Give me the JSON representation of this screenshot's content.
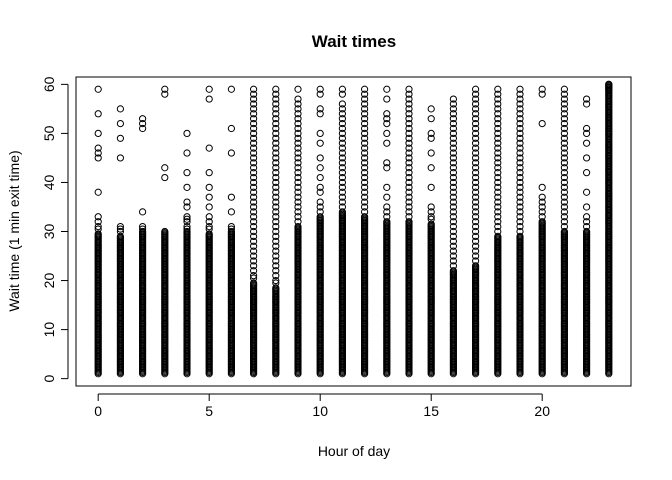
{
  "chart_data": {
    "type": "scatter",
    "title": "Wait times",
    "xlabel": "Hour of day",
    "ylabel": "Wait time (1 min exit time)",
    "xlim": [
      -1,
      24
    ],
    "ylim": [
      -1.5,
      61.5
    ],
    "x_ticks": [
      0,
      5,
      10,
      15,
      20
    ],
    "y_ticks": [
      0,
      10,
      20,
      30,
      40,
      50,
      60
    ],
    "marker": "open-circle",
    "marker_color": "#000000",
    "hours": [
      {
        "x": 0,
        "dense_to": 29.5,
        "outliers": [
          59,
          54,
          50,
          47,
          46,
          45,
          38,
          33,
          32,
          31,
          30.5
        ]
      },
      {
        "x": 1,
        "dense_to": 29,
        "outliers": [
          55,
          52,
          49,
          45,
          31,
          30.5,
          30
        ]
      },
      {
        "x": 2,
        "dense_to": 30,
        "outliers": [
          53,
          52,
          51,
          34,
          31,
          30.5
        ]
      },
      {
        "x": 3,
        "dense_to": 30,
        "outliers": [
          59,
          58,
          43,
          41
        ]
      },
      {
        "x": 4,
        "dense_to": 30,
        "outliers": [
          50,
          46,
          42,
          39,
          36,
          35,
          33,
          32.5,
          32,
          31,
          30.5
        ]
      },
      {
        "x": 5,
        "dense_to": 29.5,
        "outliers": [
          59,
          57,
          47,
          42,
          39,
          37,
          35,
          33,
          32,
          31,
          30.5
        ]
      },
      {
        "x": 6,
        "dense_to": 30,
        "outliers": [
          59,
          51,
          46,
          37,
          34,
          31,
          30.5
        ]
      },
      {
        "x": 7,
        "dense_to": 19.5,
        "outliers": [
          59,
          58,
          57,
          56,
          55,
          54,
          53,
          52,
          51,
          50,
          49,
          48,
          47,
          46,
          45,
          44,
          43,
          42,
          41,
          40,
          39,
          38,
          37,
          36,
          35,
          34,
          33,
          32,
          31,
          30,
          29,
          28,
          27,
          26,
          25,
          24,
          23,
          22,
          21,
          20.5
        ]
      },
      {
        "x": 8,
        "dense_to": 18.5,
        "outliers": [
          59,
          58,
          57,
          56,
          55,
          54,
          53,
          52,
          51,
          50,
          49,
          48,
          47,
          46,
          45,
          44,
          43,
          42,
          41,
          40,
          39,
          38,
          37,
          36,
          35,
          34,
          33,
          32,
          31,
          30,
          29,
          28,
          27,
          26,
          25,
          24,
          23,
          22,
          21,
          20,
          19.5
        ]
      },
      {
        "x": 9,
        "dense_to": 31,
        "outliers": [
          59,
          57,
          56,
          55,
          54,
          53,
          52,
          51,
          50,
          49,
          48,
          47,
          46,
          45,
          44,
          43,
          42,
          41,
          40,
          39,
          38,
          37,
          36,
          35,
          34,
          33,
          32
        ]
      },
      {
        "x": 10,
        "dense_to": 33,
        "outliers": [
          59,
          58,
          55,
          54,
          50,
          48,
          45,
          43,
          41,
          39,
          38,
          36,
          35,
          34
        ]
      },
      {
        "x": 11,
        "dense_to": 34,
        "outliers": [
          59,
          58,
          56,
          55,
          54,
          53,
          52,
          51,
          50,
          49,
          48,
          47,
          46,
          45,
          44,
          43,
          42,
          41,
          40,
          39,
          38,
          37,
          36,
          35
        ]
      },
      {
        "x": 12,
        "dense_to": 33,
        "outliers": [
          59,
          58,
          57,
          56,
          55,
          54,
          53,
          52,
          51,
          50,
          49,
          48,
          47,
          46,
          45,
          44,
          43,
          42,
          41,
          40,
          39,
          38,
          37,
          36,
          35,
          34
        ]
      },
      {
        "x": 13,
        "dense_to": 32,
        "outliers": [
          59,
          57,
          54,
          53,
          52,
          50,
          48,
          44,
          43,
          39,
          37,
          35,
          34,
          33
        ]
      },
      {
        "x": 14,
        "dense_to": 32,
        "outliers": [
          59,
          58,
          57,
          56,
          55,
          54,
          53,
          52,
          51,
          50,
          49,
          48,
          47,
          46,
          45,
          44,
          43,
          42,
          41,
          40,
          39,
          38,
          37,
          36,
          35,
          34,
          33
        ]
      },
      {
        "x": 15,
        "dense_to": 31.5,
        "outliers": [
          55,
          53,
          50,
          49,
          46,
          43,
          39,
          35,
          34,
          33,
          32.5
        ]
      },
      {
        "x": 16,
        "dense_to": 22,
        "outliers": [
          57,
          56,
          55,
          54,
          53,
          52,
          51,
          50,
          49,
          48,
          47,
          46,
          45,
          44,
          43,
          42,
          41,
          40,
          39,
          38,
          37,
          36,
          35,
          34,
          33,
          32,
          31,
          30,
          29,
          28,
          27,
          26,
          25,
          24,
          23
        ]
      },
      {
        "x": 17,
        "dense_to": 23,
        "outliers": [
          59,
          58,
          57,
          56,
          55,
          54,
          53,
          52,
          51,
          50,
          49,
          48,
          47,
          46,
          45,
          44,
          43,
          42,
          41,
          40,
          39,
          38,
          37,
          36,
          35,
          34,
          33,
          32,
          31,
          30,
          29,
          28,
          27,
          26,
          25,
          24
        ]
      },
      {
        "x": 18,
        "dense_to": 29,
        "outliers": [
          59,
          58,
          57,
          56,
          55,
          54,
          53,
          52,
          51,
          50,
          49,
          48,
          47,
          46,
          45,
          44,
          43,
          42,
          41,
          40,
          39,
          38,
          37,
          36,
          35,
          34,
          33,
          32,
          31,
          30
        ]
      },
      {
        "x": 19,
        "dense_to": 29,
        "outliers": [
          59,
          58,
          57,
          56,
          55,
          54,
          53,
          52,
          51,
          50,
          49,
          48,
          47,
          46,
          45,
          44,
          43,
          42,
          41,
          40,
          39,
          38,
          37,
          36,
          35,
          34,
          33,
          32,
          31,
          30
        ]
      },
      {
        "x": 20,
        "dense_to": 32,
        "outliers": [
          59,
          58,
          52,
          39,
          37,
          36,
          35,
          34,
          33
        ]
      },
      {
        "x": 21,
        "dense_to": 30,
        "outliers": [
          59,
          58,
          57,
          56,
          55,
          54,
          53,
          52,
          51,
          50,
          49,
          48,
          47,
          46,
          45,
          44,
          43,
          42,
          41,
          40,
          39,
          38,
          37,
          36,
          35,
          34,
          33,
          32,
          31
        ]
      },
      {
        "x": 22,
        "dense_to": 30,
        "outliers": [
          57,
          56,
          51,
          50,
          48,
          45,
          42,
          38,
          35,
          33,
          32,
          31
        ]
      },
      {
        "x": 23,
        "dense_to": 60,
        "outliers": [
          60,
          59.5,
          59
        ]
      }
    ]
  }
}
